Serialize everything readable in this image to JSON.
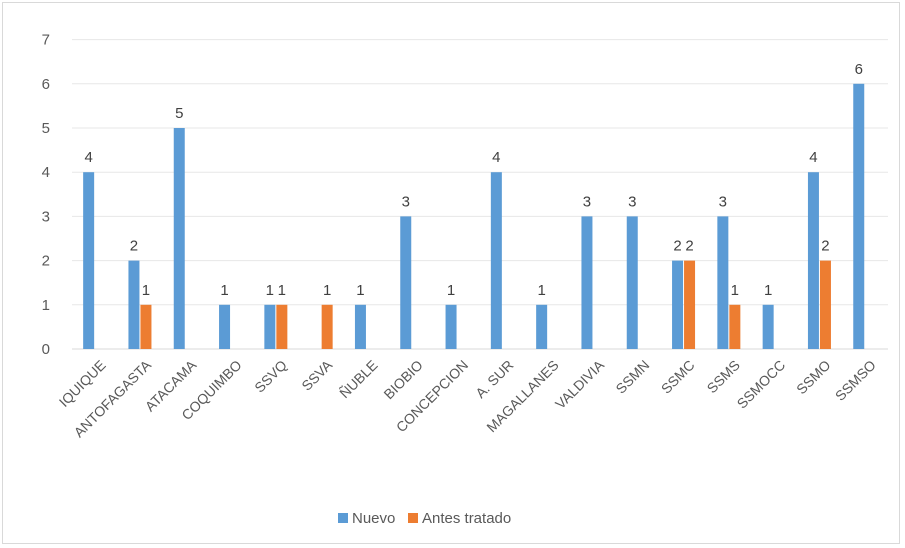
{
  "chart_data": {
    "type": "bar",
    "categories": [
      "IQUIQUE",
      "ANTOFAGASTA",
      "ATACAMA",
      "COQUIMBO",
      "SSVQ",
      "SSVA",
      "ÑUBLE",
      "BIOBIO",
      "CONCEPCION",
      "A. SUR",
      "MAGALLANES",
      "VALDIVIA",
      "SSMN",
      "SSMC",
      "SSMS",
      "SSMOCC",
      "SSMO",
      "SSMSO"
    ],
    "series": [
      {
        "name": "Nuevo",
        "color": "#5b9bd5",
        "values": [
          4,
          2,
          5,
          1,
          1,
          null,
          1,
          3,
          1,
          4,
          1,
          3,
          3,
          2,
          3,
          1,
          4,
          6
        ]
      },
      {
        "name": "Antes tratado",
        "color": "#ed7d31",
        "values": [
          null,
          1,
          null,
          null,
          1,
          1,
          null,
          null,
          null,
          null,
          null,
          null,
          null,
          2,
          1,
          null,
          2,
          null
        ]
      }
    ],
    "ylim": [
      0,
      7
    ],
    "yticks": [
      "0",
      "1",
      "2",
      "3",
      "4",
      "5",
      "6",
      "7"
    ],
    "grid": true,
    "legend_position": "bottom"
  }
}
